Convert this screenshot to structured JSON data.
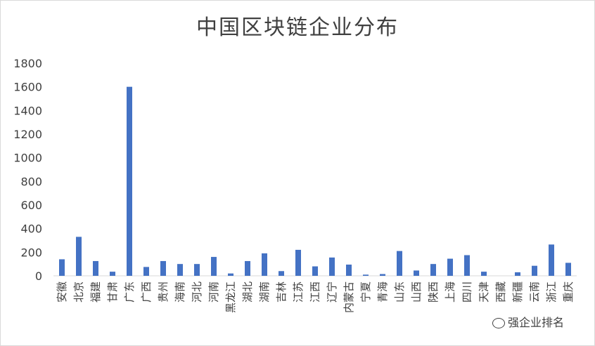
{
  "chart_data": {
    "type": "bar",
    "title": "中国区块链企业分布",
    "xlabel": "",
    "ylabel": "",
    "ylim": [
      0,
      1800
    ],
    "yticks": [
      0,
      200,
      400,
      600,
      800,
      1000,
      1200,
      1400,
      1600,
      1800
    ],
    "grid": false,
    "legend": "none",
    "bar_color": "#4472C4",
    "categories": [
      "安徽",
      "北京",
      "福建",
      "甘肃",
      "广东",
      "广西",
      "贵州",
      "海南",
      "河北",
      "河南",
      "黑龙江",
      "湖北",
      "湖南",
      "吉林",
      "江苏",
      "江西",
      "辽宁",
      "内蒙古",
      "宁夏",
      "青海",
      "山东",
      "山西",
      "陕西",
      "上海",
      "四川",
      "天津",
      "西藏",
      "新疆",
      "云南",
      "浙江",
      "重庆"
    ],
    "values": [
      140,
      330,
      125,
      35,
      1600,
      75,
      125,
      100,
      100,
      160,
      20,
      125,
      190,
      40,
      220,
      80,
      155,
      95,
      10,
      15,
      210,
      45,
      100,
      145,
      175,
      35,
      0,
      30,
      85,
      265,
      110
    ]
  },
  "watermark": {
    "text": "强企业排名",
    "icon": "wechat-icon"
  }
}
